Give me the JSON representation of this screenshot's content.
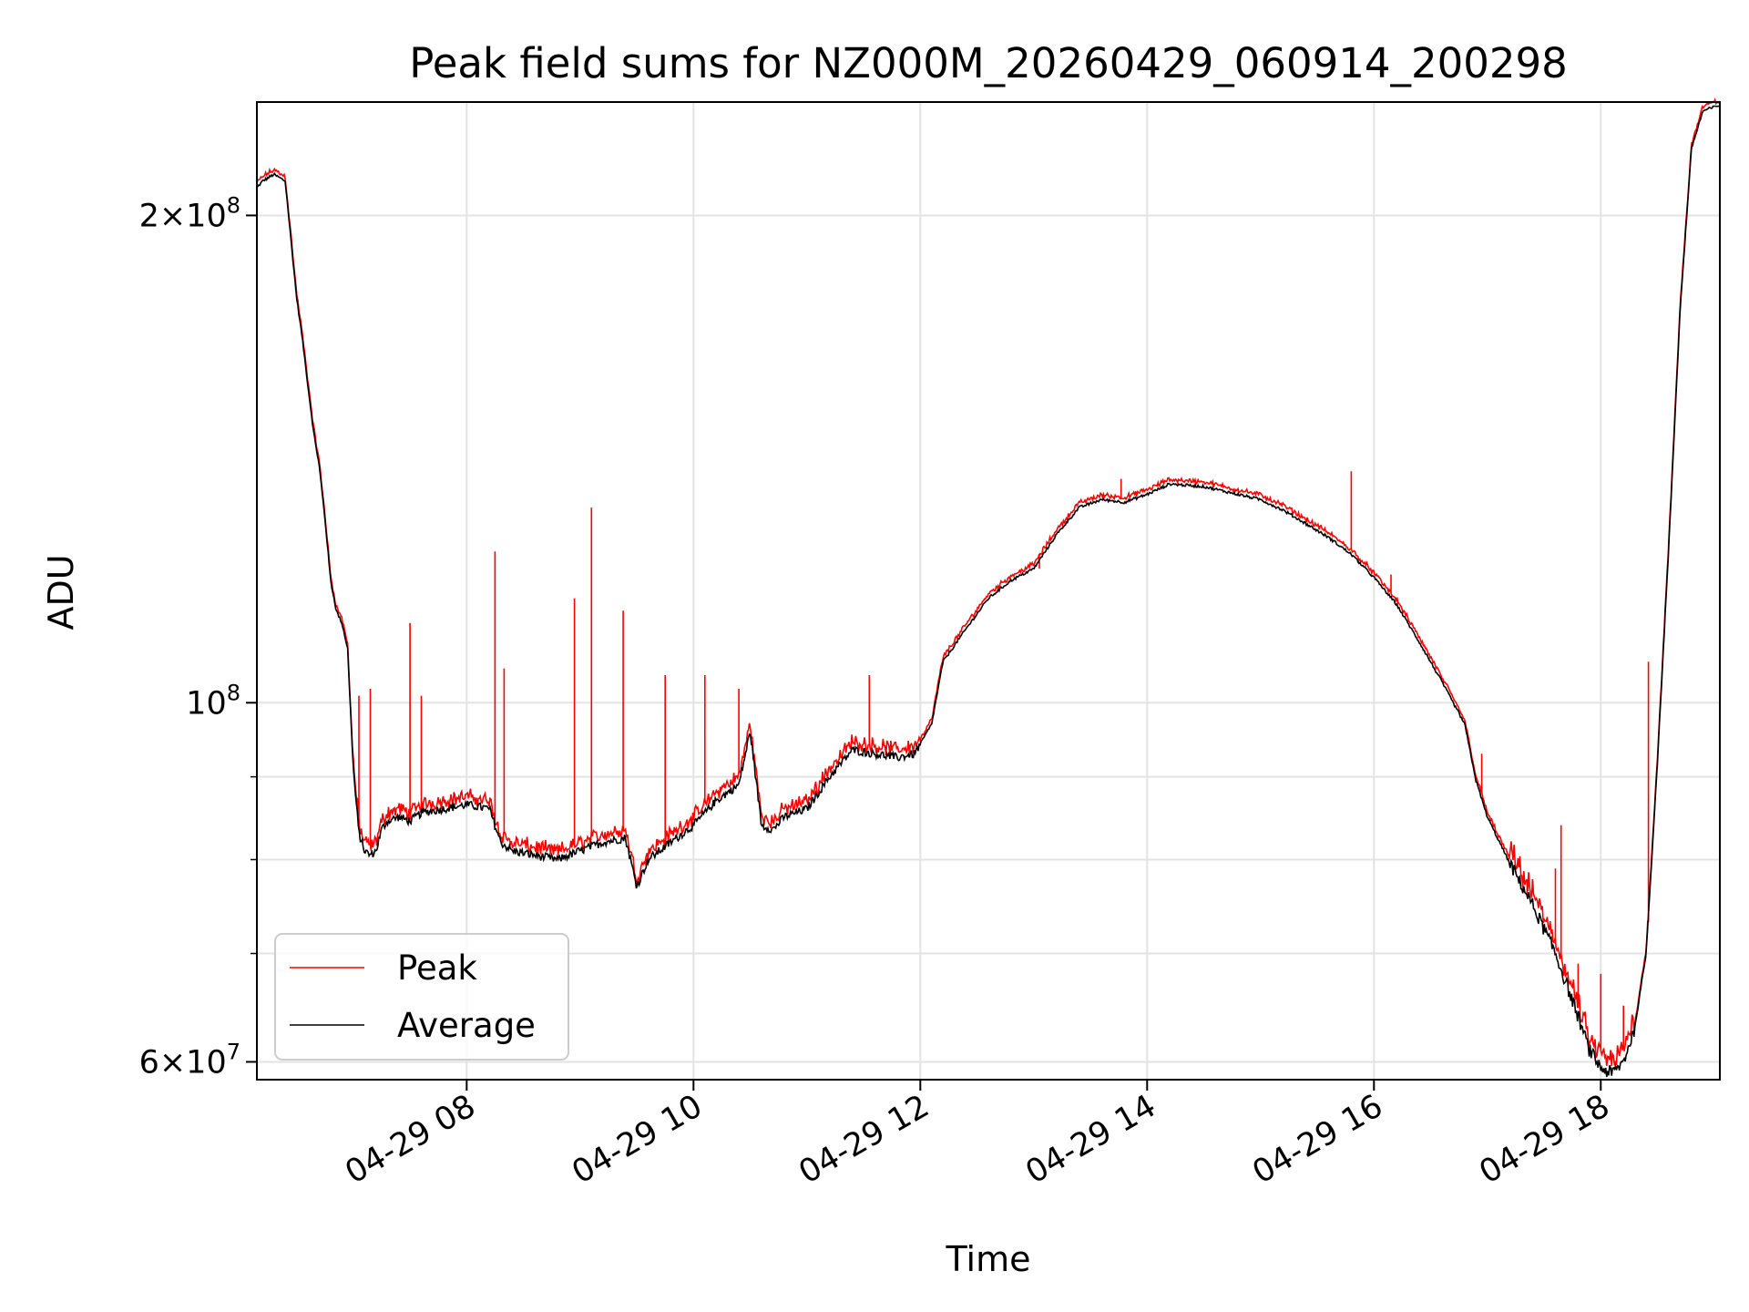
{
  "chart_data": {
    "type": "line",
    "title": "Peak field sums for NZ000M_20260429_060914_200298",
    "xlabel": "Time",
    "ylabel": "ADU",
    "yscale": "log",
    "xlim": [
      6.15,
      19.05
    ],
    "ylim": [
      58500000,
      235000000
    ],
    "grid": true,
    "legend_position": "lower-left",
    "x_ticks": [
      {
        "value": 8,
        "label": "04-29 08"
      },
      {
        "value": 10,
        "label": "04-29 10"
      },
      {
        "value": 12,
        "label": "04-29 12"
      },
      {
        "value": 14,
        "label": "04-29 14"
      },
      {
        "value": 16,
        "label": "04-29 16"
      },
      {
        "value": 18,
        "label": "04-29 18"
      }
    ],
    "y_major_ticks": [
      {
        "value": 60000000,
        "base": "6×10",
        "exp": "7"
      },
      {
        "value": 100000000,
        "base": "10",
        "exp": "8"
      },
      {
        "value": 200000000,
        "base": "2×10",
        "exp": "8"
      }
    ],
    "y_minor_ticks": [
      70000000,
      80000000,
      90000000
    ],
    "series": [
      {
        "name": "Peak",
        "color": "#ff0000"
      },
      {
        "name": "Average",
        "color": "#000000"
      }
    ],
    "average_curve": {
      "time_hours": [
        6.15,
        6.2,
        6.3,
        6.4,
        6.5,
        6.55,
        6.6,
        6.65,
        6.7,
        6.75,
        6.8,
        6.85,
        6.9,
        6.95,
        7.0,
        7.05,
        7.1,
        7.15,
        7.2,
        7.25,
        7.3,
        7.4,
        7.5,
        7.6,
        7.8,
        8.0,
        8.2,
        8.3,
        8.4,
        8.6,
        8.8,
        9.0,
        9.2,
        9.4,
        9.5,
        9.6,
        9.8,
        10.0,
        10.2,
        10.4,
        10.5,
        10.6,
        10.7,
        10.8,
        11.0,
        11.2,
        11.4,
        11.6,
        11.8,
        11.95,
        12.1,
        12.2,
        12.4,
        12.6,
        12.8,
        13.0,
        13.2,
        13.4,
        13.6,
        13.8,
        14.0,
        14.2,
        14.5,
        14.8,
        15.0,
        15.2,
        15.4,
        15.6,
        15.8,
        16.0,
        16.2,
        16.4,
        16.6,
        16.8,
        16.9,
        17.0,
        17.2,
        17.4,
        17.6,
        17.8,
        17.9,
        18.0,
        18.1,
        18.2,
        18.3,
        18.4,
        18.5,
        18.6,
        18.7,
        18.8,
        18.9,
        19.05
      ],
      "adu": [
        208000000,
        210000000,
        212000000,
        210000000,
        178000000,
        168000000,
        157000000,
        147000000,
        140000000,
        130000000,
        119000000,
        114000000,
        112000000,
        108000000,
        91000000,
        83000000,
        81000000,
        80500000,
        81000000,
        83500000,
        84500000,
        85000000,
        84500000,
        85500000,
        86000000,
        86500000,
        86000000,
        82000000,
        81000000,
        80500000,
        80000000,
        81000000,
        82000000,
        82500000,
        77000000,
        80000000,
        82000000,
        84000000,
        87000000,
        89000000,
        96000000,
        84000000,
        83500000,
        85000000,
        86000000,
        90000000,
        93500000,
        93000000,
        92500000,
        93000000,
        97000000,
        106000000,
        111000000,
        116000000,
        119000000,
        121000000,
        127000000,
        132000000,
        133500000,
        133000000,
        134500000,
        136500000,
        136000000,
        134500000,
        133500000,
        131500000,
        129000000,
        126500000,
        123500000,
        119500000,
        115000000,
        109000000,
        103000000,
        97000000,
        89500000,
        85000000,
        79500000,
        75000000,
        70000000,
        64000000,
        61000000,
        59500000,
        59000000,
        60000000,
        63000000,
        70000000,
        92000000,
        125000000,
        175000000,
        220000000,
        232000000,
        234000000
      ]
    },
    "peak_spikes": [
      {
        "t": 7.05,
        "adu": 101000000
      },
      {
        "t": 7.15,
        "adu": 102000000
      },
      {
        "t": 7.5,
        "adu": 112000000
      },
      {
        "t": 7.6,
        "adu": 101000000
      },
      {
        "t": 8.25,
        "adu": 124000000
      },
      {
        "t": 8.33,
        "adu": 105000000
      },
      {
        "t": 8.95,
        "adu": 116000000
      },
      {
        "t": 9.1,
        "adu": 132000000
      },
      {
        "t": 9.38,
        "adu": 114000000
      },
      {
        "t": 9.75,
        "adu": 104000000
      },
      {
        "t": 10.1,
        "adu": 104000000
      },
      {
        "t": 10.4,
        "adu": 102000000
      },
      {
        "t": 11.55,
        "adu": 104000000
      },
      {
        "t": 12.7,
        "adu": 118000000
      },
      {
        "t": 13.05,
        "adu": 121000000
      },
      {
        "t": 13.77,
        "adu": 137500000
      },
      {
        "t": 15.8,
        "adu": 139000000
      },
      {
        "t": 16.15,
        "adu": 120000000
      },
      {
        "t": 16.95,
        "adu": 93000000
      },
      {
        "t": 17.35,
        "adu": 76000000
      },
      {
        "t": 17.6,
        "adu": 79000000
      },
      {
        "t": 17.65,
        "adu": 84000000
      },
      {
        "t": 17.8,
        "adu": 69000000
      },
      {
        "t": 18.0,
        "adu": 68000000
      },
      {
        "t": 18.2,
        "adu": 65000000
      },
      {
        "t": 18.42,
        "adu": 106000000
      }
    ],
    "legend": [
      "Peak",
      "Average"
    ]
  }
}
